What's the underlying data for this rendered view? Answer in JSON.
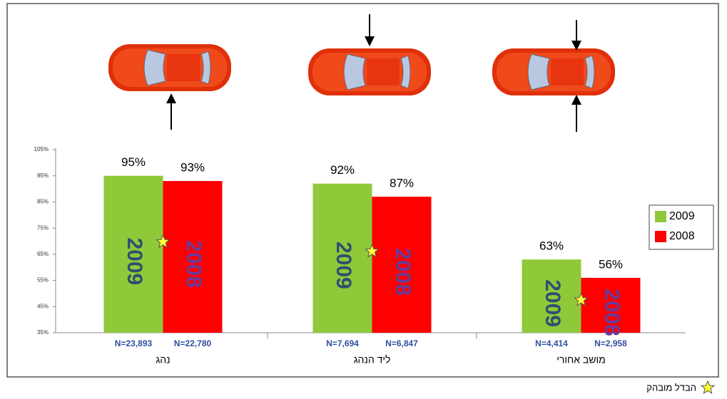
{
  "chart_data": {
    "type": "bar",
    "categories": [
      "נהג",
      "ליד הנהג",
      "מושב אחורי"
    ],
    "series": [
      {
        "name": "2009",
        "color": "#8fc93a",
        "text_color": "#2f4f6f",
        "values": [
          95,
          92,
          63
        ],
        "value_labels": [
          "95%",
          "92%",
          "63%"
        ],
        "n_labels": [
          "N=23,893",
          "N=7,694",
          "N=4,414"
        ]
      },
      {
        "name": "2008",
        "color": "#ff0000",
        "text_color": "#6a3a9a",
        "values": [
          93,
          87,
          56
        ],
        "value_labels": [
          "93%",
          "87%",
          "56%"
        ],
        "n_labels": [
          "N=22,780",
          "N=6,847",
          "N=2,958"
        ]
      }
    ],
    "significant": [
      true,
      true,
      true
    ],
    "significance_legend": "הבדל מובהק",
    "ylim": [
      35,
      105
    ],
    "yticks": [
      {
        "value": 35,
        "label": "35%"
      },
      {
        "value": 45,
        "label": "45%"
      },
      {
        "value": 55,
        "label": "55%"
      },
      {
        "value": 65,
        "label": "65%"
      },
      {
        "value": 75,
        "label": "75%"
      },
      {
        "value": 85,
        "label": "85%"
      },
      {
        "value": 95,
        "label": "95%"
      },
      {
        "value": 105,
        "label": "105%"
      }
    ],
    "grid": false
  }
}
